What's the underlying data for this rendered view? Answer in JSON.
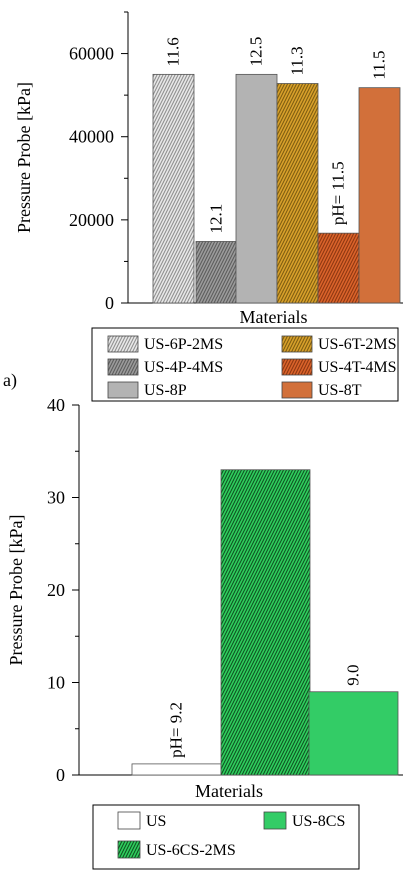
{
  "chart_data": [
    {
      "type": "bar",
      "panel_label": "",
      "xlabel": "Materials",
      "ylabel": "Pressure Probe [kPa]",
      "ylim": [
        0,
        70000
      ],
      "yticks": [
        0,
        20000,
        40000,
        60000
      ],
      "grid": false,
      "legend": "below",
      "series": [
        {
          "name": "US-6P-2MS",
          "value": 55000,
          "label": "11.6",
          "color": "#e6e6e6",
          "hatch": true,
          "hatch_color": "#8c8c8c"
        },
        {
          "name": "US-4P-4MS",
          "value": 14800,
          "label": "12.1",
          "color": "#9a9a9a",
          "hatch": true,
          "hatch_color": "#5a5a5a"
        },
        {
          "name": "US-8P",
          "value": 55000,
          "label": "12.5",
          "color": "#b3b3b3",
          "hatch": false
        },
        {
          "name": "US-6T-2MS",
          "value": 52800,
          "label": "11.3",
          "color": "#d69f2a",
          "hatch": true,
          "hatch_color": "#7a5a10"
        },
        {
          "name": "US-4T-4MS",
          "value": 16800,
          "label": "pH= 11.5",
          "color": "#d9622a",
          "hatch": true,
          "hatch_color": "#8a3510"
        },
        {
          "name": "US-8T",
          "value": 51800,
          "label": "11.5",
          "color": "#d2703a",
          "hatch": false
        }
      ]
    },
    {
      "type": "bar",
      "panel_label": "a)",
      "xlabel": "Materials",
      "ylabel": "Pressure Probe [kPa]",
      "ylim": [
        0,
        40
      ],
      "yticks": [
        0,
        10,
        20,
        30,
        40
      ],
      "grid": false,
      "legend": "below",
      "series": [
        {
          "name": "US",
          "value": 1.2,
          "label": "pH= 9.2",
          "color": "#ffffff",
          "hatch": false
        },
        {
          "name": "US-6CS-2MS",
          "value": 33,
          "label": "",
          "color": "#2ecc5c",
          "hatch": true,
          "hatch_color": "#0d4d1f"
        },
        {
          "name": "US-8CS",
          "value": 9,
          "label": "9.0",
          "color": "#33cc66",
          "hatch": false
        }
      ]
    }
  ]
}
